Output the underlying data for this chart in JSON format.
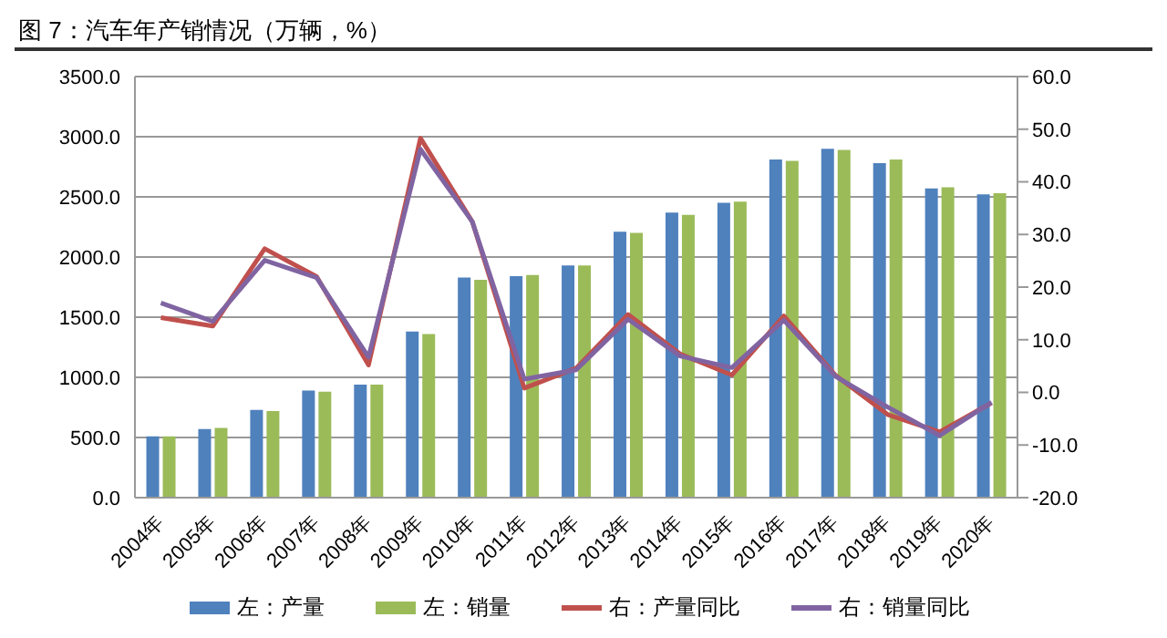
{
  "chart_data": {
    "type": "bar",
    "title": "图 7：汽车年产销情况（万辆，%）",
    "categories": [
      "2004年",
      "2005年",
      "2006年",
      "2007年",
      "2008年",
      "2009年",
      "2010年",
      "2011年",
      "2012年",
      "2013年",
      "2014年",
      "2015年",
      "2016年",
      "2017年",
      "2018年",
      "2019年",
      "2020年"
    ],
    "series": [
      {
        "name": "左：产量",
        "color": "#4f81bd",
        "values": [
          510,
          570,
          730,
          890,
          940,
          1380,
          1830,
          1840,
          1930,
          2210,
          2370,
          2450,
          2810,
          2900,
          2780,
          2570,
          2520
        ]
      },
      {
        "name": "左：销量",
        "color": "#9bbb59",
        "values": [
          510,
          580,
          720,
          880,
          940,
          1360,
          1810,
          1850,
          1930,
          2200,
          2350,
          2460,
          2800,
          2890,
          2810,
          2580,
          2530
        ]
      },
      {
        "name": "右：产量同比",
        "type": "line",
        "axis": "y2",
        "color": "#c0504d",
        "values": [
          14.2,
          12.6,
          27.3,
          22.0,
          5.2,
          48.3,
          32.4,
          0.8,
          4.6,
          14.8,
          7.3,
          3.3,
          14.5,
          3.2,
          -4.2,
          -7.5,
          -2.0
        ]
      },
      {
        "name": "右：销量同比",
        "type": "line",
        "axis": "y2",
        "color": "#8064a2",
        "values": [
          17.0,
          13.5,
          25.1,
          21.8,
          6.7,
          46.2,
          32.4,
          2.5,
          4.3,
          13.9,
          6.9,
          4.7,
          13.7,
          3.0,
          -2.8,
          -8.2,
          -1.9
        ]
      }
    ],
    "ylim": [
      0,
      3500
    ],
    "yticks": [
      {
        "value": 0,
        "label": "0.0"
      },
      {
        "value": 500,
        "label": "500.0"
      },
      {
        "value": 1000,
        "label": "1000.0"
      },
      {
        "value": 1500,
        "label": "1500.0"
      },
      {
        "value": 2000,
        "label": "2000.0"
      },
      {
        "value": 2500,
        "label": "2500.0"
      },
      {
        "value": 3000,
        "label": "3000.0"
      },
      {
        "value": 3500,
        "label": "3500.0"
      }
    ],
    "y2lim": [
      -20,
      60
    ],
    "y2ticks": [
      {
        "value": -20,
        "label": "-20.0"
      },
      {
        "value": -10,
        "label": "-10.0"
      },
      {
        "value": 0,
        "label": "0.0"
      },
      {
        "value": 10,
        "label": "10.0"
      },
      {
        "value": 20,
        "label": "20.0"
      },
      {
        "value": 30,
        "label": "30.0"
      },
      {
        "value": 40,
        "label": "40.0"
      },
      {
        "value": 50,
        "label": "50.0"
      },
      {
        "value": 60,
        "label": "60.0"
      }
    ],
    "grid": "y",
    "legend": "bottom",
    "marker": "none",
    "line_style": "solid"
  }
}
